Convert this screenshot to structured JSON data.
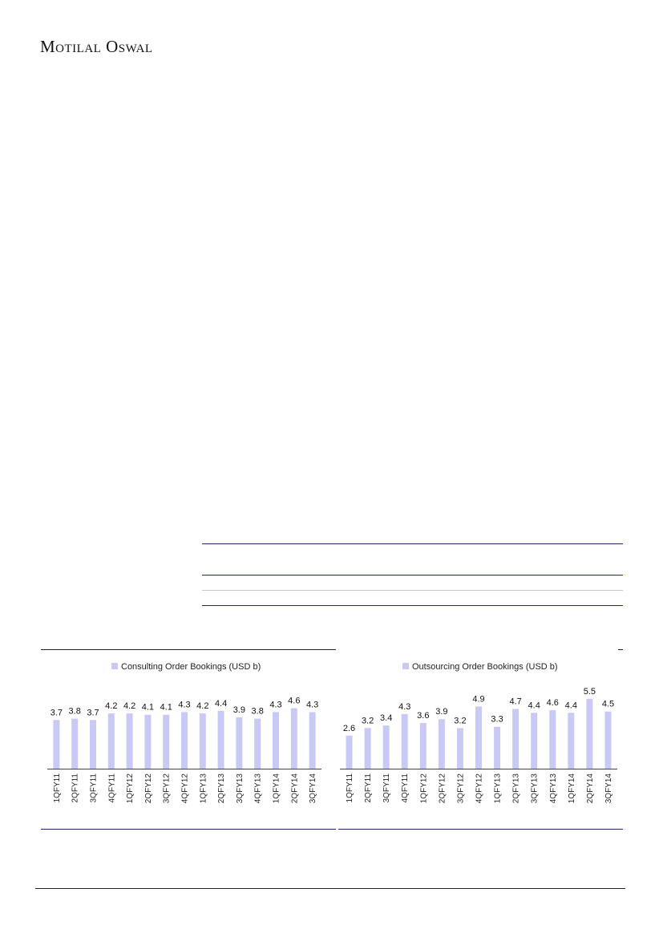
{
  "header": {
    "brand": "Motilal Oswal"
  },
  "colors": {
    "bar": "#c9c9f5",
    "rule_blue": "#1f2a5a",
    "rule_grey": "#c8c8c8"
  },
  "chart_data": [
    {
      "type": "bar",
      "legend": "Consulting Order Bookings (USD b)",
      "categories": [
        "1QFY11",
        "2QFY11",
        "3QFY11",
        "4QFY11",
        "1QFY12",
        "2QFY12",
        "3QFY12",
        "4QFY12",
        "1QFY13",
        "2QFY13",
        "3QFY13",
        "4QFY13",
        "1QFY14",
        "2QFY14",
        "3QFY14"
      ],
      "values": [
        3.7,
        3.8,
        3.7,
        4.2,
        4.2,
        4.1,
        4.1,
        4.3,
        4.2,
        4.4,
        3.9,
        3.8,
        4.3,
        4.6,
        4.3
      ],
      "ylim": [
        0,
        6
      ],
      "grid": false,
      "legend_position": "top-center"
    },
    {
      "type": "bar",
      "legend": "Outsourcing Order Bookings (USD b)",
      "categories": [
        "1QFY11",
        "2QFY11",
        "3QFY11",
        "4QFY11",
        "1QFY12",
        "2QFY12",
        "3QFY12",
        "4QFY12",
        "1QFY13",
        "2QFY13",
        "3QFY13",
        "4QFY13",
        "1QFY14",
        "2QFY14",
        "3QFY14"
      ],
      "values": [
        2.6,
        3.2,
        3.4,
        4.3,
        3.6,
        3.9,
        3.2,
        4.9,
        3.3,
        4.7,
        4.4,
        4.6,
        4.4,
        5.5,
        4.5
      ],
      "ylim": [
        0,
        6.5
      ],
      "grid": false,
      "legend_position": "top-center"
    }
  ]
}
